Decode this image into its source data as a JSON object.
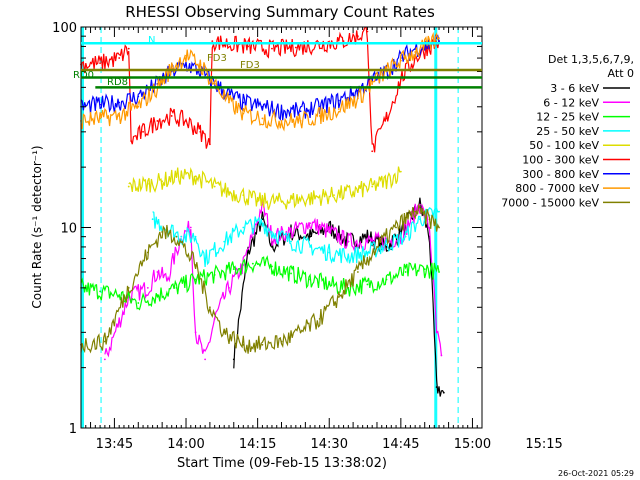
{
  "chart_data": {
    "type": "line",
    "title": "RHESSI Observing Summary Count Rates",
    "xlabel": "Start Time (09-Feb-15 13:38:02)",
    "ylabel": "Count Rate (s⁻¹ detector⁻¹)",
    "yscale": "log",
    "ylim": [
      1,
      100
    ],
    "xlim_minutes_after_start": [
      0,
      84
    ],
    "x_ticks": [
      {
        "label": "13:45",
        "t": 7
      },
      {
        "label": "14:00",
        "t": 22
      },
      {
        "label": "14:15",
        "t": 37
      },
      {
        "label": "14:30",
        "t": 52
      },
      {
        "label": "14:45",
        "t": 67
      },
      {
        "label": "15:00",
        "t": 82
      },
      {
        "label": "15:15",
        "t": 97
      }
    ],
    "y_ticks": [
      {
        "label": "1",
        "v": 1
      },
      {
        "label": "10",
        "v": 10
      },
      {
        "label": "100",
        "v": 100
      }
    ],
    "legend_title": [
      "Det 1,3,5,6,7,9,",
      "Att 0"
    ],
    "legend_placement": "right",
    "series": [
      {
        "name": "3 - 6 keV",
        "color": "#000000",
        "points": [
          [
            32,
            2.2
          ],
          [
            35,
            7.5
          ],
          [
            38,
            11
          ],
          [
            40,
            8
          ],
          [
            44,
            9.5
          ],
          [
            48,
            9
          ],
          [
            52,
            10
          ],
          [
            56,
            8.5
          ],
          [
            60,
            9
          ],
          [
            64,
            8
          ],
          [
            67,
            9.5
          ],
          [
            71,
            13
          ],
          [
            73,
            9
          ],
          [
            74.5,
            1.6
          ],
          [
            76,
            1.5
          ]
        ]
      },
      {
        "name": "6 - 12 keV",
        "color": "#ff00ff",
        "points": [
          [
            5,
            2.2
          ],
          [
            10,
            4.5
          ],
          [
            14,
            5
          ],
          [
            16,
            6
          ],
          [
            18,
            5.5
          ],
          [
            21,
            9
          ],
          [
            23,
            10
          ],
          [
            24,
            3
          ],
          [
            26,
            2.2
          ],
          [
            28,
            3.5
          ],
          [
            31,
            5
          ],
          [
            34,
            6.5
          ],
          [
            38,
            13
          ],
          [
            40,
            9
          ],
          [
            44,
            9.5
          ],
          [
            48,
            10.5
          ],
          [
            52,
            9.5
          ],
          [
            56,
            8.5
          ],
          [
            60,
            8.5
          ],
          [
            64,
            8.5
          ],
          [
            67,
            9
          ],
          [
            71,
            13
          ],
          [
            73,
            10
          ],
          [
            74.5,
            3
          ],
          [
            75.5,
            2.3
          ]
        ]
      },
      {
        "name": "12 - 25 keV",
        "color": "#00ff00",
        "points": [
          [
            0,
            5
          ],
          [
            4,
            4.8
          ],
          [
            8,
            4.6
          ],
          [
            12,
            4.2
          ],
          [
            16,
            4.6
          ],
          [
            20,
            5
          ],
          [
            24,
            5.5
          ],
          [
            28,
            5.8
          ],
          [
            32,
            6.2
          ],
          [
            36,
            6.6
          ],
          [
            40,
            6.4
          ],
          [
            44,
            5.9
          ],
          [
            48,
            5.5
          ],
          [
            52,
            5.2
          ],
          [
            56,
            5
          ],
          [
            60,
            5.2
          ],
          [
            64,
            5.5
          ],
          [
            68,
            6
          ],
          [
            72,
            6.2
          ],
          [
            75,
            6
          ]
        ]
      },
      {
        "name": "25 - 50 keV",
        "color": "#00ffff",
        "points": [
          [
            15,
            11
          ],
          [
            18,
            10
          ],
          [
            21,
            9
          ],
          [
            24,
            9
          ],
          [
            26,
            7
          ],
          [
            30,
            8.5
          ],
          [
            34,
            10
          ],
          [
            38,
            10.5
          ],
          [
            40,
            9.5
          ],
          [
            44,
            8.5
          ],
          [
            48,
            8
          ],
          [
            52,
            7.5
          ],
          [
            56,
            7.2
          ],
          [
            60,
            7.5
          ],
          [
            64,
            8.2
          ],
          [
            68,
            9
          ],
          [
            71,
            11
          ],
          [
            73,
            11.5
          ],
          [
            75,
            12
          ]
        ]
      },
      {
        "name": "50 - 100 keV",
        "color": "#dddd00",
        "points": [
          [
            10,
            16
          ],
          [
            14,
            16.5
          ],
          [
            17,
            17
          ],
          [
            20,
            18
          ],
          [
            24,
            18
          ],
          [
            28,
            16
          ],
          [
            31,
            15
          ],
          [
            34,
            14.5
          ],
          [
            37,
            13.5
          ],
          [
            42,
            13.5
          ],
          [
            48,
            14
          ],
          [
            53,
            14.5
          ],
          [
            57,
            15
          ],
          [
            61,
            16
          ],
          [
            64,
            17
          ],
          [
            67,
            19
          ]
        ]
      },
      {
        "name": "100 - 300 keV",
        "color": "#ff0000",
        "points": [
          [
            0,
            65
          ],
          [
            4,
            66
          ],
          [
            8,
            70
          ],
          [
            10,
            78
          ],
          [
            10.5,
            27
          ],
          [
            13,
            30
          ],
          [
            16,
            34
          ],
          [
            19,
            36
          ],
          [
            22,
            34
          ],
          [
            25,
            30
          ],
          [
            27,
            26
          ],
          [
            27.5,
            85
          ],
          [
            31,
            82
          ],
          [
            35,
            80
          ],
          [
            40,
            78
          ],
          [
            45,
            79
          ],
          [
            50,
            82
          ],
          [
            55,
            85
          ],
          [
            58,
            90
          ],
          [
            60,
            95
          ],
          [
            61,
            24
          ],
          [
            64,
            35
          ],
          [
            67,
            55
          ],
          [
            70,
            70
          ],
          [
            73,
            80
          ],
          [
            75,
            85
          ]
        ]
      },
      {
        "name": "300 - 800 keV",
        "color": "#0000ff",
        "points": [
          [
            0,
            40
          ],
          [
            4,
            41
          ],
          [
            8,
            42
          ],
          [
            12,
            45
          ],
          [
            16,
            52
          ],
          [
            19,
            60
          ],
          [
            22,
            65
          ],
          [
            25,
            60
          ],
          [
            28,
            52
          ],
          [
            31,
            46
          ],
          [
            34,
            42
          ],
          [
            38,
            40
          ],
          [
            42,
            38
          ],
          [
            46,
            38
          ],
          [
            50,
            40
          ],
          [
            54,
            43
          ],
          [
            58,
            48
          ],
          [
            61,
            54
          ],
          [
            64,
            60
          ],
          [
            67,
            70
          ],
          [
            70,
            78
          ],
          [
            73,
            82
          ],
          [
            75,
            85
          ]
        ]
      },
      {
        "name": "800 - 7000 keV",
        "color": "#ff9900",
        "points": [
          [
            0,
            34
          ],
          [
            4,
            35
          ],
          [
            8,
            36
          ],
          [
            12,
            40
          ],
          [
            16,
            50
          ],
          [
            19,
            62
          ],
          [
            22,
            72
          ],
          [
            25,
            65
          ],
          [
            28,
            52
          ],
          [
            31,
            42
          ],
          [
            34,
            37
          ],
          [
            38,
            35
          ],
          [
            42,
            34
          ],
          [
            46,
            34
          ],
          [
            50,
            36
          ],
          [
            54,
            39
          ],
          [
            58,
            44
          ],
          [
            61,
            52
          ],
          [
            64,
            60
          ],
          [
            67,
            68
          ],
          [
            70,
            75
          ],
          [
            73,
            82
          ],
          [
            75,
            88
          ]
        ]
      },
      {
        "name": "7000 - 15000 keV",
        "color": "#808000",
        "points": [
          [
            0,
            2.6
          ],
          [
            5,
            2.7
          ],
          [
            10,
            5
          ],
          [
            14,
            7.5
          ],
          [
            17,
            9.5
          ],
          [
            20,
            9
          ],
          [
            24,
            6.5
          ],
          [
            27,
            4
          ],
          [
            30,
            3
          ],
          [
            34,
            2.6
          ],
          [
            38,
            2.6
          ],
          [
            42,
            2.7
          ],
          [
            46,
            3
          ],
          [
            50,
            3.5
          ],
          [
            54,
            4.5
          ],
          [
            58,
            6
          ],
          [
            62,
            8
          ],
          [
            66,
            10
          ],
          [
            70,
            12
          ],
          [
            73,
            11
          ],
          [
            75,
            10
          ]
        ]
      }
    ],
    "annotations": [
      {
        "text": "N",
        "color": "#00ffff"
      },
      {
        "text": "RD0",
        "color": "#008000"
      },
      {
        "text": "RD8",
        "color": "#008000"
      },
      {
        "text": "FD3",
        "color": "#808000"
      },
      {
        "text": "FD3",
        "color": "#808000"
      }
    ],
    "timestamp": "26-Oct-2021 05:29"
  }
}
